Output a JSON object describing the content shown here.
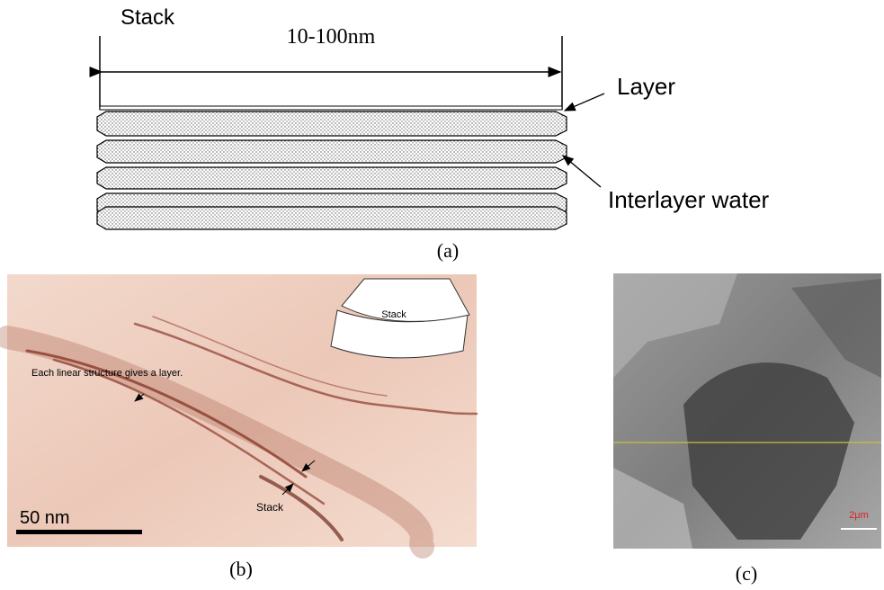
{
  "panel_a": {
    "stack_label": "Stack",
    "width_label": "10-100nm",
    "layer_label": "Layer",
    "water_label": "Interlayer water",
    "caption": "(a)"
  },
  "panel_b": {
    "annotation": "Each linear structure gives a layer.",
    "inset_label": "Stack",
    "arrow_label": "Stack",
    "scale_label": "50 nm",
    "caption": "(b)"
  },
  "panel_c": {
    "scale_label": "2μm",
    "caption": "(c)"
  }
}
